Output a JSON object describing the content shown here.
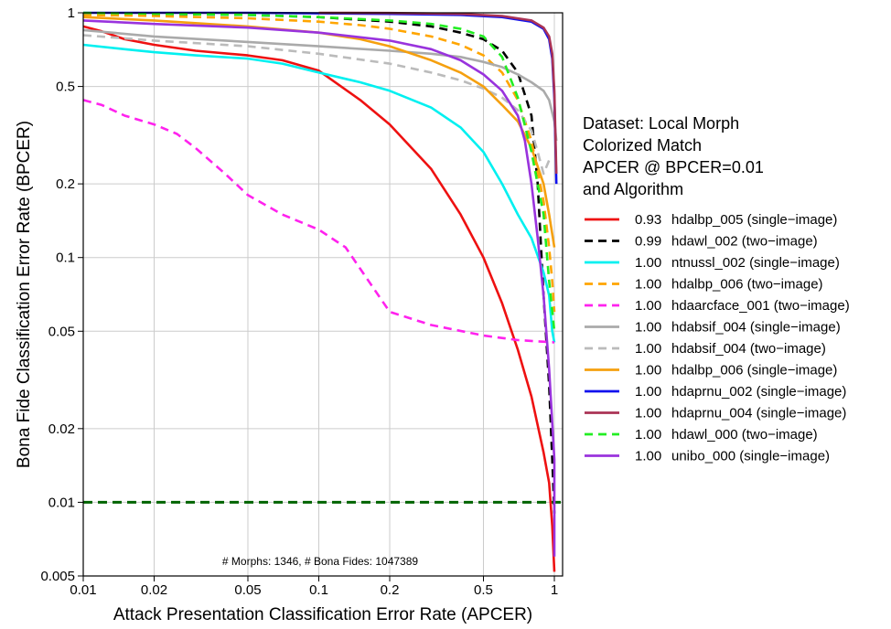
{
  "chart_data": {
    "type": "line",
    "xlabel": "Attack Presentation Classification Error Rate (APCER)",
    "ylabel": "Bona Fide Classification Error Rate (BPCER)",
    "xscale": "log",
    "yscale": "log",
    "xlim": [
      0.01,
      1.1
    ],
    "ylim": [
      0.005,
      1.0
    ],
    "x_ticks": [
      {
        "v": 0.01,
        "label": "0.01"
      },
      {
        "v": 0.02,
        "label": "0.02"
      },
      {
        "v": 0.05,
        "label": "0.05"
      },
      {
        "v": 0.1,
        "label": "0.1"
      },
      {
        "v": 0.2,
        "label": "0.2"
      },
      {
        "v": 0.5,
        "label": "0.5"
      },
      {
        "v": 1.0,
        "label": "1"
      }
    ],
    "y_ticks": [
      {
        "v": 0.005,
        "label": "0.005"
      },
      {
        "v": 0.01,
        "label": "0.01"
      },
      {
        "v": 0.02,
        "label": "0.02"
      },
      {
        "v": 0.05,
        "label": "0.05"
      },
      {
        "v": 0.1,
        "label": "0.1"
      },
      {
        "v": 0.2,
        "label": "0.2"
      },
      {
        "v": 0.5,
        "label": "0.5"
      },
      {
        "v": 1.0,
        "label": "1"
      }
    ],
    "grid": true,
    "annotation": "# Morphs: 1346, # Bona Fides: 1047389",
    "reference_line": {
      "y": 0.01,
      "color": "#006400",
      "dash": "dashed"
    },
    "legend": {
      "placement": "right",
      "title_lines": [
        "Dataset: Local Morph",
        "Colorized Match",
        "APCER @ BPCER=0.01",
        "and Algorithm"
      ]
    },
    "series": [
      {
        "value": "0.93",
        "name": "hdalbp_005 (single−image)",
        "color": "#ee1111",
        "dash": "solid",
        "x": [
          0.01,
          0.012,
          0.015,
          0.02,
          0.03,
          0.05,
          0.07,
          0.1,
          0.15,
          0.2,
          0.3,
          0.4,
          0.5,
          0.6,
          0.7,
          0.8,
          0.9,
          0.95,
          0.98,
          1.0
        ],
        "y": [
          0.88,
          0.84,
          0.78,
          0.74,
          0.7,
          0.67,
          0.64,
          0.58,
          0.44,
          0.35,
          0.23,
          0.15,
          0.1,
          0.065,
          0.042,
          0.027,
          0.016,
          0.012,
          0.008,
          0.0052
        ]
      },
      {
        "value": "0.99",
        "name": "hdawl_002 (two−image)",
        "color": "#000000",
        "dash": "dashed",
        "x": [
          0.01,
          0.02,
          0.05,
          0.1,
          0.2,
          0.3,
          0.4,
          0.5,
          0.6,
          0.7,
          0.8,
          0.85,
          0.9,
          0.95,
          0.98,
          1.0
        ],
        "y": [
          0.99,
          0.99,
          0.98,
          0.96,
          0.92,
          0.88,
          0.83,
          0.78,
          0.7,
          0.57,
          0.38,
          0.2,
          0.07,
          0.03,
          0.015,
          0.009
        ]
      },
      {
        "value": "1.00",
        "name": "ntnussl_002 (single−image)",
        "color": "#00f0f0",
        "dash": "solid",
        "x": [
          0.01,
          0.015,
          0.02,
          0.03,
          0.05,
          0.07,
          0.1,
          0.15,
          0.2,
          0.3,
          0.4,
          0.5,
          0.6,
          0.7,
          0.8,
          0.9,
          0.95,
          0.98,
          1.0
        ],
        "y": [
          0.74,
          0.71,
          0.69,
          0.67,
          0.65,
          0.62,
          0.57,
          0.52,
          0.48,
          0.41,
          0.34,
          0.27,
          0.2,
          0.15,
          0.12,
          0.087,
          0.07,
          0.05,
          0.045
        ]
      },
      {
        "value": "1.00",
        "name": "hdalbp_006 (two−image)",
        "color": "#ffa500",
        "dash": "dashed",
        "x": [
          0.01,
          0.02,
          0.05,
          0.1,
          0.15,
          0.2,
          0.3,
          0.4,
          0.5,
          0.6,
          0.7,
          0.8,
          0.9,
          0.95,
          0.98,
          1.0
        ],
        "y": [
          0.98,
          0.97,
          0.95,
          0.92,
          0.89,
          0.86,
          0.8,
          0.74,
          0.67,
          0.57,
          0.44,
          0.3,
          0.17,
          0.11,
          0.08,
          0.06
        ]
      },
      {
        "value": "1.00",
        "name": "hdaarcface_001 (two−image)",
        "color": "#ff22ee",
        "dash": "dashed",
        "x": [
          0.01,
          0.012,
          0.015,
          0.02,
          0.025,
          0.03,
          0.04,
          0.05,
          0.07,
          0.1,
          0.13,
          0.15,
          0.2,
          0.3,
          0.5,
          0.7,
          1.0
        ],
        "y": [
          0.44,
          0.42,
          0.38,
          0.35,
          0.32,
          0.28,
          0.22,
          0.18,
          0.15,
          0.13,
          0.11,
          0.09,
          0.06,
          0.053,
          0.048,
          0.046,
          0.045
        ]
      },
      {
        "value": "1.00",
        "name": "hdabsif_004 (single−image)",
        "color": "#aaaaaa",
        "dash": "solid",
        "x": [
          0.01,
          0.02,
          0.05,
          0.1,
          0.2,
          0.3,
          0.4,
          0.5,
          0.6,
          0.7,
          0.8,
          0.9,
          0.95,
          1.0,
          1.02
        ],
        "y": [
          0.85,
          0.8,
          0.76,
          0.73,
          0.7,
          0.68,
          0.66,
          0.63,
          0.6,
          0.56,
          0.52,
          0.48,
          0.44,
          0.36,
          0.3
        ]
      },
      {
        "value": "1.00",
        "name": "hdabsif_004 (two−image)",
        "color": "#bbbbbb",
        "dash": "dashed",
        "x": [
          0.01,
          0.02,
          0.05,
          0.1,
          0.2,
          0.3,
          0.4,
          0.5,
          0.6,
          0.7,
          0.8,
          0.85,
          0.9,
          0.95
        ],
        "y": [
          0.81,
          0.77,
          0.73,
          0.68,
          0.62,
          0.57,
          0.53,
          0.49,
          0.45,
          0.4,
          0.33,
          0.27,
          0.22,
          0.25
        ]
      },
      {
        "value": "1.00",
        "name": "hdalbp_006 (single−image)",
        "color": "#f5a00f",
        "dash": "solid",
        "x": [
          0.01,
          0.02,
          0.05,
          0.1,
          0.15,
          0.2,
          0.3,
          0.4,
          0.5,
          0.6,
          0.7,
          0.8,
          0.9,
          0.95,
          1.0
        ],
        "y": [
          0.96,
          0.93,
          0.88,
          0.83,
          0.78,
          0.73,
          0.64,
          0.57,
          0.5,
          0.42,
          0.36,
          0.28,
          0.2,
          0.15,
          0.11
        ]
      },
      {
        "value": "1.00",
        "name": "hdaprnu_002 (single−image)",
        "color": "#1111ee",
        "dash": "solid",
        "x": [
          0.01,
          0.05,
          0.1,
          0.2,
          0.4,
          0.6,
          0.8,
          0.9,
          0.95,
          0.98,
          1.0,
          1.02
        ],
        "y": [
          1.0,
          1.0,
          0.995,
          0.99,
          0.98,
          0.96,
          0.92,
          0.86,
          0.78,
          0.65,
          0.45,
          0.2
        ]
      },
      {
        "value": "1.00",
        "name": "hdaprnu_004 (single−image)",
        "color": "#aa3355",
        "dash": "solid",
        "x": [
          0.1,
          0.2,
          0.4,
          0.6,
          0.8,
          0.9,
          0.95,
          0.98,
          1.0,
          1.02
        ],
        "y": [
          1.0,
          0.998,
          0.99,
          0.97,
          0.93,
          0.87,
          0.8,
          0.68,
          0.48,
          0.22
        ]
      },
      {
        "value": "1.00",
        "name": "hdawl_000 (two−image)",
        "color": "#22ee22",
        "dash": "dashed",
        "x": [
          0.01,
          0.05,
          0.1,
          0.2,
          0.3,
          0.4,
          0.5,
          0.6,
          0.7,
          0.8,
          0.9,
          0.95,
          1.0
        ],
        "y": [
          1.0,
          0.98,
          0.96,
          0.93,
          0.9,
          0.86,
          0.8,
          0.66,
          0.45,
          0.27,
          0.15,
          0.08,
          0.05
        ]
      },
      {
        "value": "1.00",
        "name": "unibo_000 (single−image)",
        "color": "#9933dd",
        "dash": "solid",
        "x": [
          0.01,
          0.02,
          0.05,
          0.1,
          0.2,
          0.3,
          0.4,
          0.5,
          0.6,
          0.7,
          0.75,
          0.8,
          0.85,
          0.9,
          0.95,
          1.0,
          1.0
        ],
        "y": [
          0.93,
          0.9,
          0.87,
          0.83,
          0.77,
          0.71,
          0.64,
          0.56,
          0.48,
          0.38,
          0.3,
          0.2,
          0.12,
          0.07,
          0.035,
          0.015,
          0.006
        ]
      }
    ]
  }
}
